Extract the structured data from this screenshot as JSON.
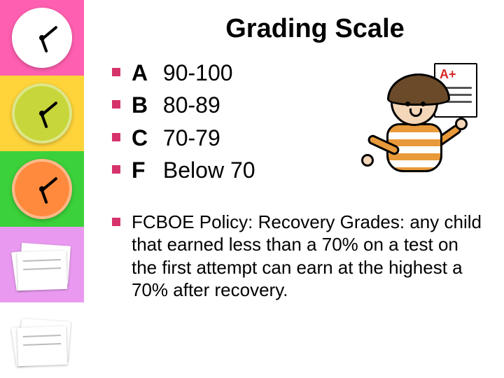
{
  "title": "Grading Scale",
  "bullet_color": "#d6336c",
  "text_color": "#000000",
  "title_fontsize": 38,
  "item_fontsize": 32,
  "policy_fontsize": 26,
  "background_color": "#ffffff",
  "sidebar": {
    "tiles": [
      {
        "type": "clock",
        "bg": "#ff5fb0",
        "face": "#ffffff"
      },
      {
        "type": "clock",
        "bg": "#ffd43b",
        "face": "#c7d63a"
      },
      {
        "type": "clock",
        "bg": "#3bd13b",
        "face": "#ff8a3d"
      },
      {
        "type": "papers",
        "bg": "#e99af0"
      },
      {
        "type": "papers",
        "bg": "#ffffff"
      }
    ]
  },
  "grades": [
    {
      "letter": "A",
      "range": "90-100"
    },
    {
      "letter": "B",
      "range": "80-89"
    },
    {
      "letter": "C",
      "range": "70-79"
    },
    {
      "letter": "F",
      "range": "Below 70"
    }
  ],
  "policy_text": "FCBOE Policy:  Recovery Grades:  any child that earned less than a 70% on a test on the first attempt can earn at the highest a 70% after recovery.",
  "illustration": {
    "name": "student-with-report-card",
    "card_grade": "A+",
    "card_grade_color": "#d62828",
    "shirt_stripe_colors": [
      "#e89a3a",
      "#ffffff"
    ],
    "skin_color": "#f4d6b8",
    "hair_color": "#6b4a2a"
  }
}
